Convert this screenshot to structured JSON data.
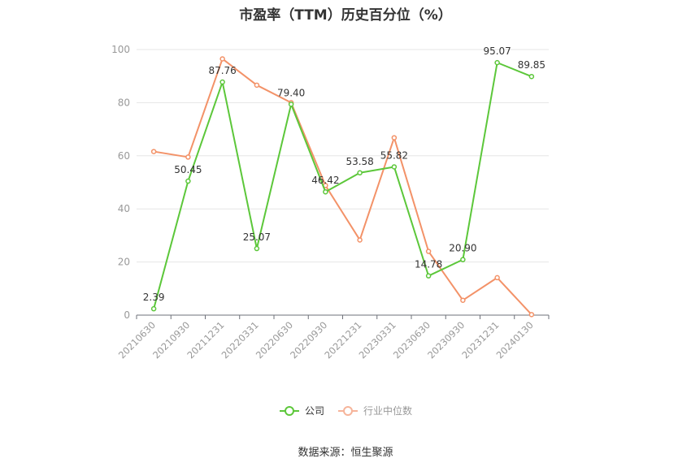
{
  "chart_data": {
    "type": "line",
    "title": "市盈率（TTM）历史百分位（%）",
    "categories": [
      "20210630",
      "20210930",
      "20211231",
      "20220331",
      "20220630",
      "20220930",
      "20221231",
      "20230331",
      "20230630",
      "20230930",
      "20231231",
      "20240130"
    ],
    "ylim": [
      0,
      100
    ],
    "yticks": [
      0,
      20,
      40,
      60,
      80,
      100
    ],
    "grid": true,
    "legend_position": "bottom",
    "series": [
      {
        "name": "公司",
        "color": "#5cc73a",
        "show_labels": true,
        "values": [
          2.39,
          50.45,
          87.76,
          25.07,
          79.4,
          46.42,
          53.58,
          55.82,
          14.78,
          20.9,
          95.07,
          89.85
        ]
      },
      {
        "name": "行业中位数",
        "color": "#f39268",
        "show_labels": false,
        "values": [
          61.6,
          59.5,
          96.5,
          86.6,
          80.0,
          48.8,
          28.3,
          66.8,
          24.0,
          5.6,
          14.1,
          0.2
        ]
      }
    ]
  },
  "source": "数据来源：恒生聚源"
}
